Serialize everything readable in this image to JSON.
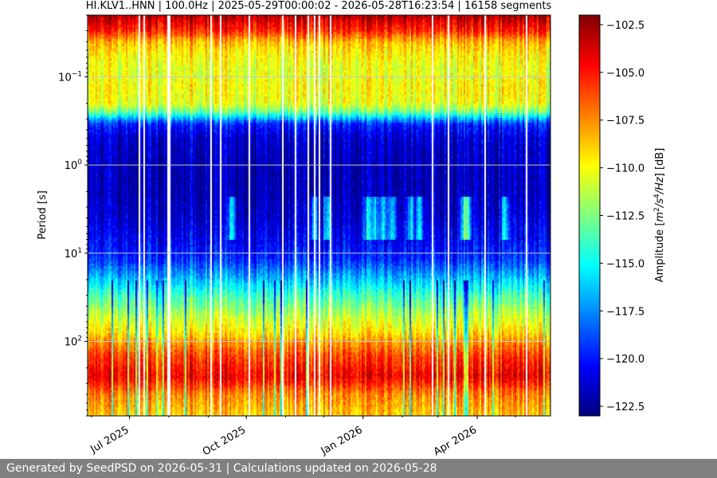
{
  "chart_data": {
    "type": "heatmap",
    "title": "HI.KLV1..HNN | 100.0Hz | 2025-05-29T00:00:02 - 2026-05-28T16:23:54 | 16158 segments",
    "ylabel": "Period [s]",
    "colorbar_label": "Amplitude [m²/s⁴/Hz] [dB]",
    "y_scale": "log",
    "ylim": [
      0.02,
      700
    ],
    "y_inverted": true,
    "y_ticks": [
      {
        "value": 0.1,
        "base": "10",
        "exp": "−1"
      },
      {
        "value": 1,
        "base": "10",
        "exp": "0"
      },
      {
        "value": 10,
        "base": "10",
        "exp": "1"
      },
      {
        "value": 100,
        "base": "10",
        "exp": "2"
      }
    ],
    "xlim": [
      "2025-05-29",
      "2026-05-28"
    ],
    "x_ticks": [
      {
        "date": "2025-07-01",
        "label": "Jul 2025"
      },
      {
        "date": "2025-10-01",
        "label": "Oct 2025"
      },
      {
        "date": "2026-01-01",
        "label": "Jan 2026"
      },
      {
        "date": "2026-04-01",
        "label": "Apr 2026"
      }
    ],
    "grid": true,
    "colorbar": {
      "colormap": "jet",
      "range": [
        -123,
        -102
      ],
      "ticks": [
        "−102.5",
        "−105.0",
        "−107.5",
        "−110.0",
        "−112.5",
        "−115.0",
        "−117.5",
        "−120.0",
        "−122.5"
      ],
      "tick_values": [
        -102.5,
        -105.0,
        -107.5,
        -110.0,
        -112.5,
        -115.0,
        -117.5,
        -120.0,
        -122.5
      ]
    },
    "amplitude_profile": {
      "period_s": [
        0.02,
        0.025,
        0.03,
        0.04,
        0.05,
        0.06,
        0.08,
        0.1,
        0.13,
        0.2,
        0.25,
        0.3,
        0.35,
        0.5,
        1,
        2,
        4,
        8,
        12,
        20,
        30,
        50,
        80,
        100,
        150,
        250,
        400,
        700
      ],
      "median_db": [
        -103,
        -104.5,
        -105.5,
        -108.5,
        -109.5,
        -110,
        -110.5,
        -110.5,
        -110,
        -110.5,
        -113,
        -117,
        -120,
        -121.5,
        -122,
        -122,
        -121.5,
        -120.5,
        -119.5,
        -116.5,
        -114,
        -111.5,
        -109.5,
        -108,
        -106,
        -104.5,
        -107.5,
        -109
      ]
    },
    "highlight_periods": {
      "period_range_s": [
        2.3,
        7
      ],
      "dates": [
        "2025-09-19",
        "2025-11-23",
        "2025-12-03",
        "2026-01-04",
        "2026-01-10",
        "2026-01-17",
        "2026-01-24",
        "2026-02-07",
        "2026-02-14",
        "2026-03-21",
        "2026-03-24",
        "2026-04-22"
      ]
    }
  },
  "footer": {
    "text": "Generated by SeedPSD on 2026-05-31 | Calculations updated on 2026-05-28"
  }
}
